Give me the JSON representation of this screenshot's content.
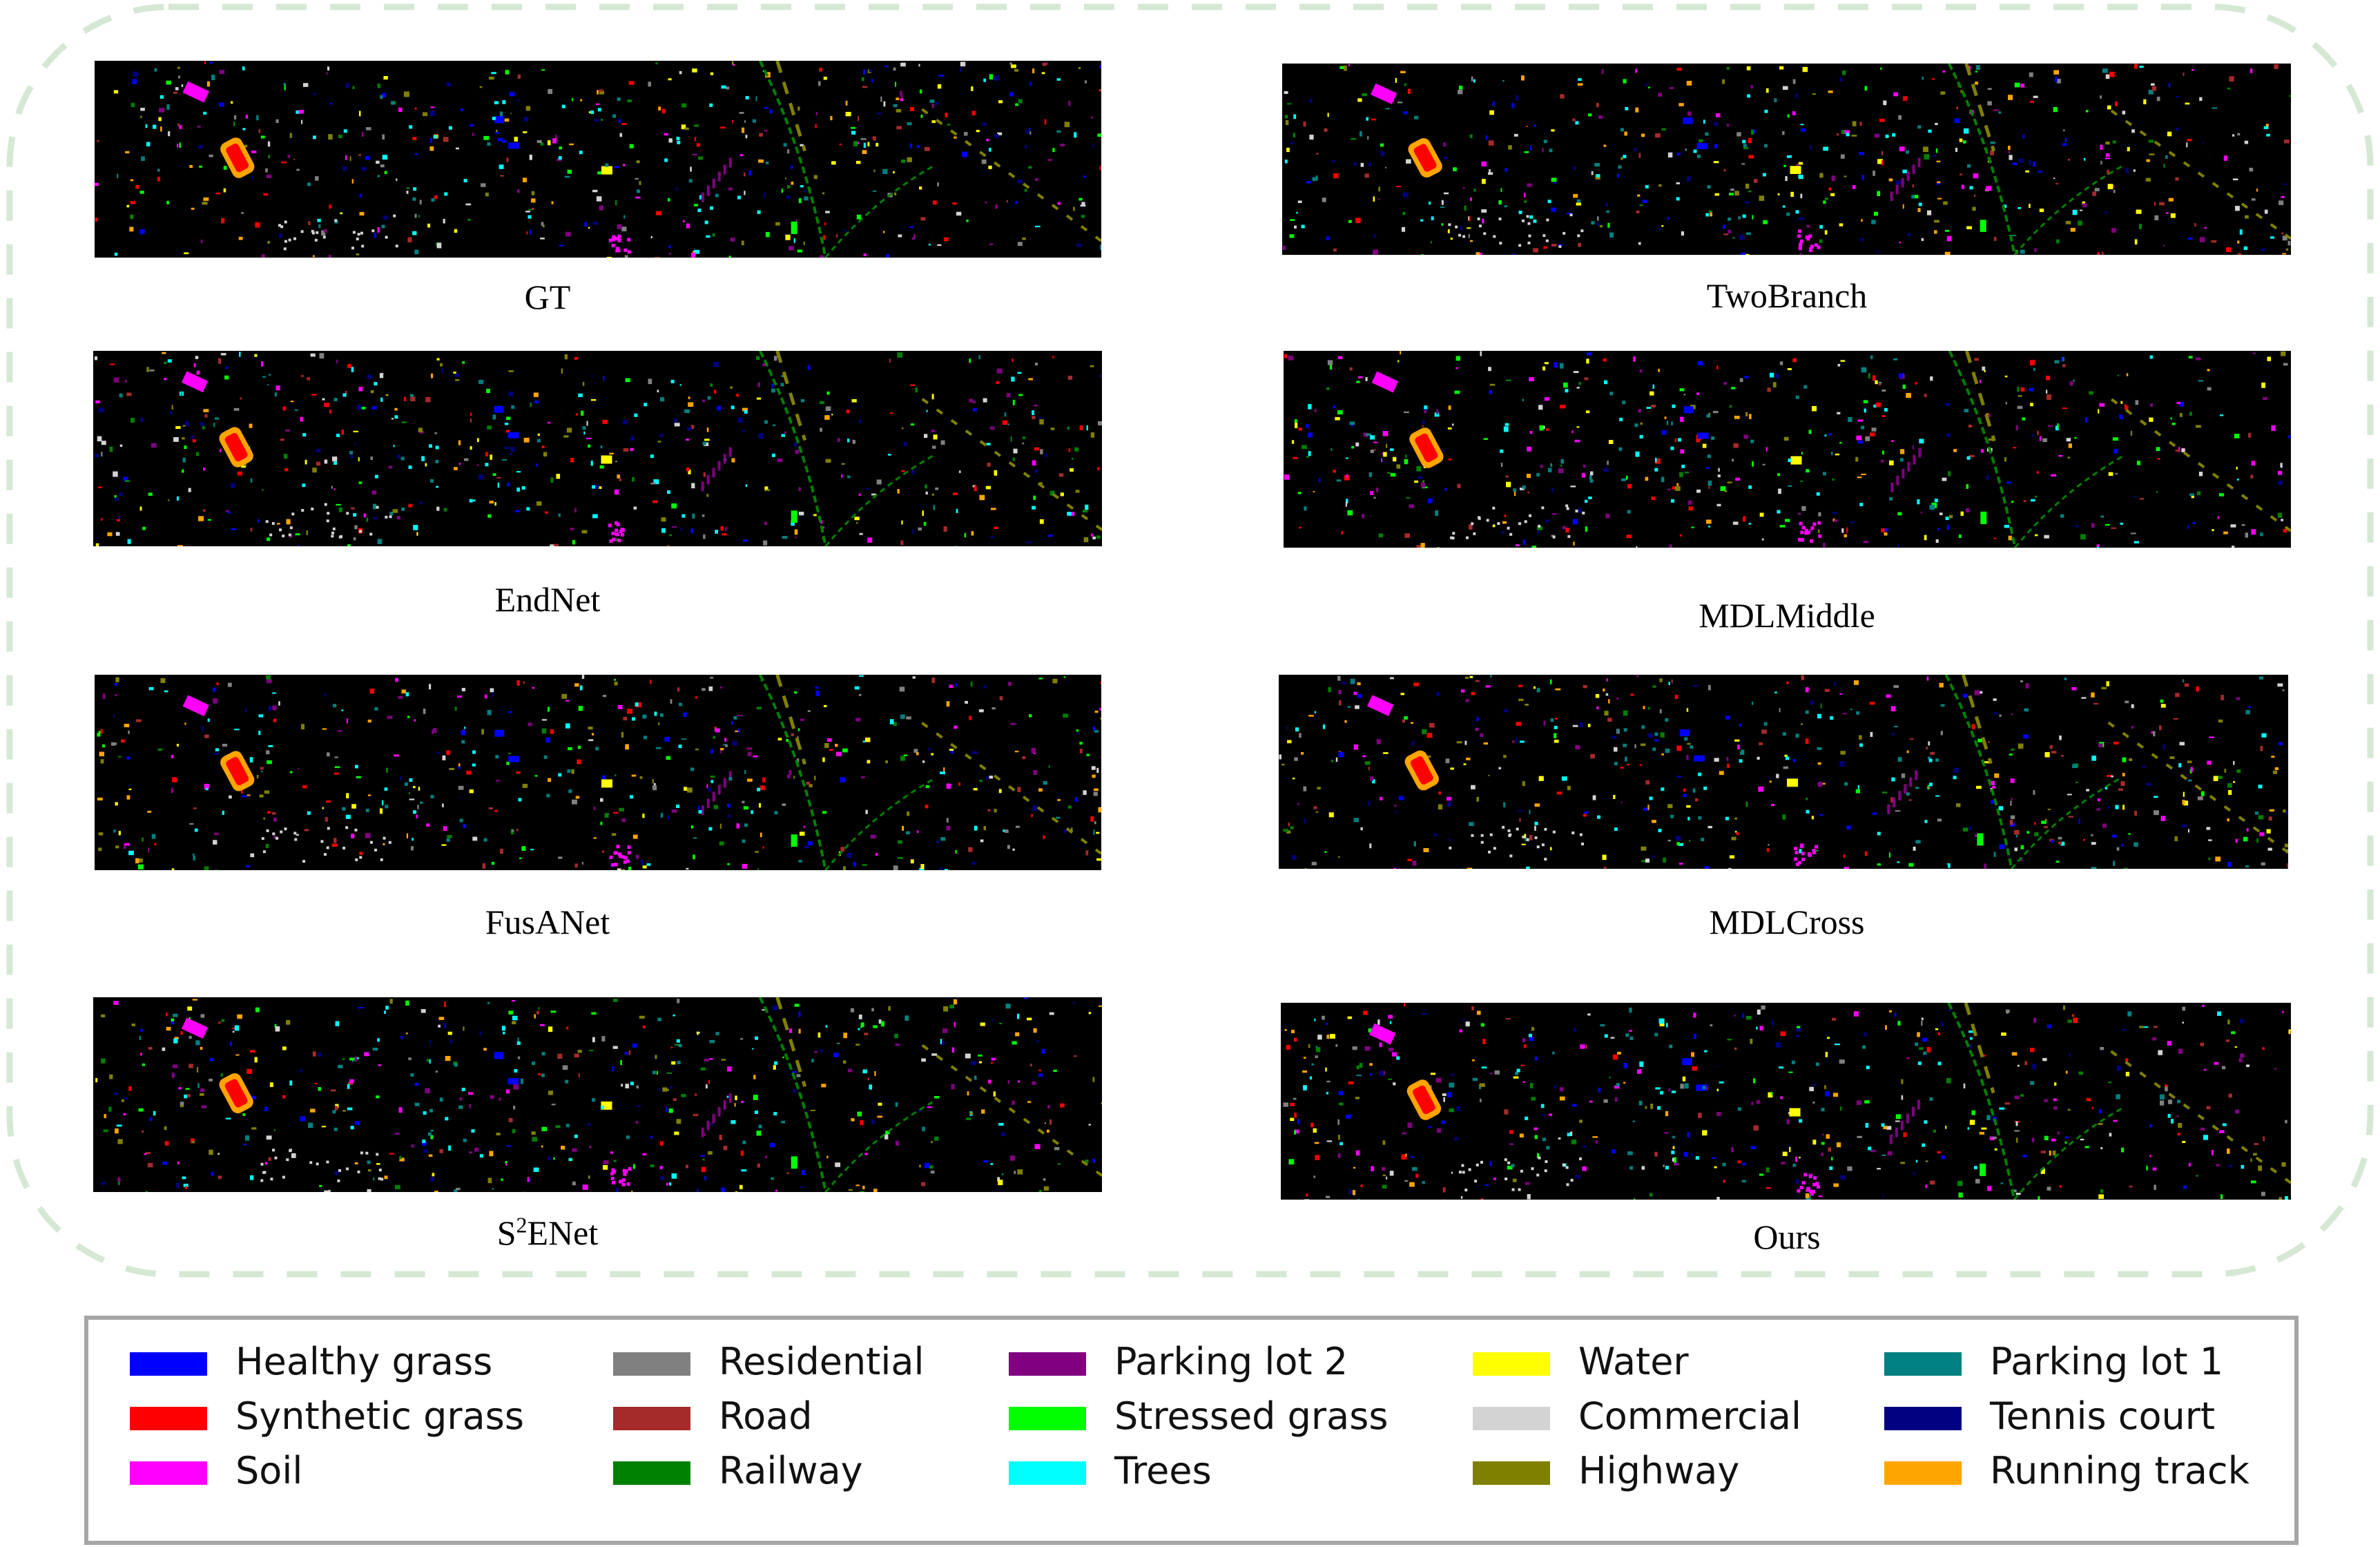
{
  "panels": [
    {
      "label": "GT"
    },
    {
      "label": "TwoBranch"
    },
    {
      "label": "EndNet"
    },
    {
      "label": "MDLMiddle"
    },
    {
      "label": "FusANet"
    },
    {
      "label": "MDLCross"
    },
    {
      "label_base": "S",
      "label_sup": "2",
      "label_rest": "ENet"
    },
    {
      "label": "Ours"
    }
  ],
  "legend": [
    {
      "label": "Healthy grass",
      "color": "#0000ff"
    },
    {
      "label": "Synthetic grass",
      "color": "#ff0000"
    },
    {
      "label": "Soil",
      "color": "#ff00ff"
    },
    {
      "label": "Residential",
      "color": "#808080"
    },
    {
      "label": "Road",
      "color": "#a52a2a"
    },
    {
      "label": "Railway",
      "color": "#008000"
    },
    {
      "label": "Parking lot 2",
      "color": "#800080"
    },
    {
      "label": "Stressed grass",
      "color": "#00ff00"
    },
    {
      "label": "Trees",
      "color": "#00ffff"
    },
    {
      "label": "Water",
      "color": "#ffff00"
    },
    {
      "label": "Commercial",
      "color": "#d3d3d3"
    },
    {
      "label": "Highway",
      "color": "#808000"
    },
    {
      "label": "Parking lot 1",
      "color": "#008080"
    },
    {
      "label": "Tennis court",
      "color": "#000080"
    },
    {
      "label": "Running track",
      "color": "#ffa500"
    }
  ],
  "frame_color": "#d5e8d4",
  "legend_border_color": "#a6a6a6"
}
